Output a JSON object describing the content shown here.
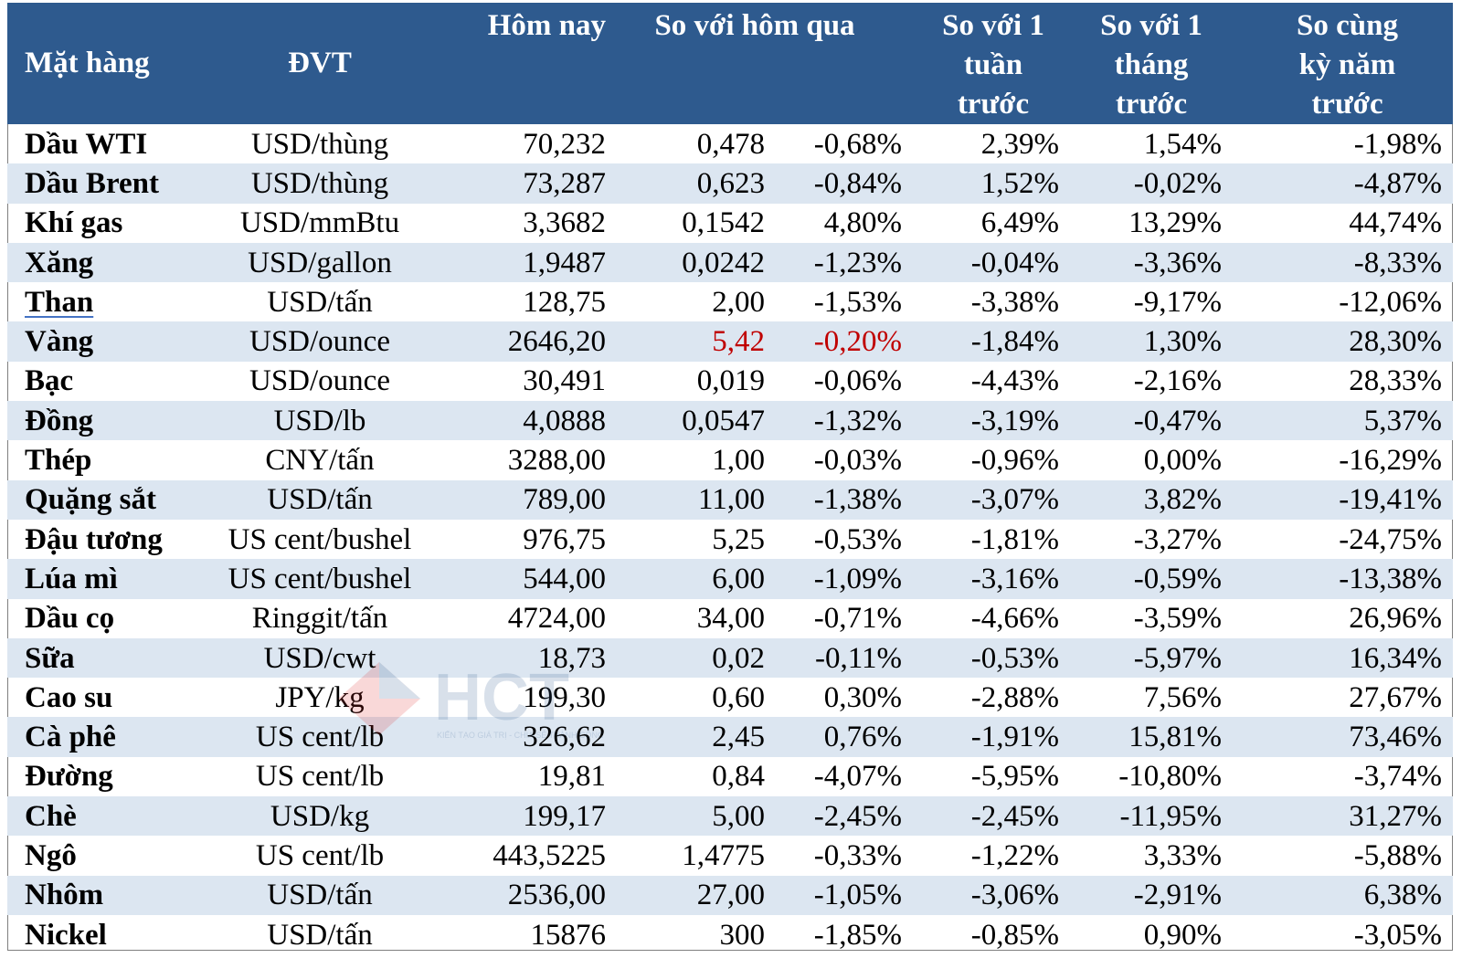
{
  "headers": {
    "item": "Mặt hàng",
    "unit": "ĐVT",
    "today": "Hôm nay",
    "vs_yesterday": "So với hôm qua",
    "vs_week": [
      "So với 1",
      "tuần",
      "trước"
    ],
    "vs_month": [
      "So với 1",
      "tháng",
      "trước"
    ],
    "vs_year": [
      "So cùng",
      "kỳ năm",
      "trước"
    ]
  },
  "rows": [
    {
      "name": "Dầu WTI",
      "unit": "USD/thùng",
      "today": "70,232",
      "chg": "0,478",
      "chg_pct": "-0,68%",
      "week": "2,39%",
      "month": "1,54%",
      "year": "-1,98%"
    },
    {
      "name": "Dầu Brent",
      "unit": "USD/thùng",
      "today": "73,287",
      "chg": "0,623",
      "chg_pct": "-0,84%",
      "week": "1,52%",
      "month": "-0,02%",
      "year": "-4,87%"
    },
    {
      "name": "Khí gas",
      "unit": "USD/mmBtu",
      "today": "3,3682",
      "chg": "0,1542",
      "chg_pct": "4,80%",
      "week": "6,49%",
      "month": "13,29%",
      "year": "44,74%"
    },
    {
      "name": "Xăng",
      "unit": "USD/gallon",
      "today": "1,9487",
      "chg": "0,0242",
      "chg_pct": "-1,23%",
      "week": "-0,04%",
      "month": "-3,36%",
      "year": "-8,33%"
    },
    {
      "name": "Than",
      "unit": "USD/tấn",
      "today": "128,75",
      "chg": "2,00",
      "chg_pct": "-1,53%",
      "week": "-3,38%",
      "month": "-9,17%",
      "year": "-12,06%"
    },
    {
      "name": "Vàng",
      "unit": "USD/ounce",
      "today": "2646,20",
      "chg": "5,42",
      "chg_pct": "-0,20%",
      "week": "-1,84%",
      "month": "1,30%",
      "year": "28,30%"
    },
    {
      "name": "Bạc",
      "unit": "USD/ounce",
      "today": "30,491",
      "chg": "0,019",
      "chg_pct": "-0,06%",
      "week": "-4,43%",
      "month": "-2,16%",
      "year": "28,33%"
    },
    {
      "name": "Đồng",
      "unit": "USD/lb",
      "today": "4,0888",
      "chg": "0,0547",
      "chg_pct": "-1,32%",
      "week": "-3,19%",
      "month": "-0,47%",
      "year": "5,37%"
    },
    {
      "name": "Thép",
      "unit": "CNY/tấn",
      "today": "3288,00",
      "chg": "1,00",
      "chg_pct": "-0,03%",
      "week": "-0,96%",
      "month": "0,00%",
      "year": "-16,29%"
    },
    {
      "name": "Quặng sắt",
      "unit": "USD/tấn",
      "today": "789,00",
      "chg": "11,00",
      "chg_pct": "-1,38%",
      "week": "-3,07%",
      "month": "3,82%",
      "year": "-19,41%"
    },
    {
      "name": "Đậu tương",
      "unit": "US cent/bushel",
      "today": "976,75",
      "chg": "5,25",
      "chg_pct": "-0,53%",
      "week": "-1,81%",
      "month": "-3,27%",
      "year": "-24,75%"
    },
    {
      "name": "Lúa mì",
      "unit": "US cent/bushel",
      "today": "544,00",
      "chg": "6,00",
      "chg_pct": "-1,09%",
      "week": "-3,16%",
      "month": "-0,59%",
      "year": "-13,38%"
    },
    {
      "name": "Dầu cọ",
      "unit": "Ringgit/tấn",
      "today": "4724,00",
      "chg": "34,00",
      "chg_pct": "-0,71%",
      "week": "-4,66%",
      "month": "-3,59%",
      "year": "26,96%"
    },
    {
      "name": "Sữa",
      "unit": "USD/cwt",
      "today": "18,73",
      "chg": "0,02",
      "chg_pct": "-0,11%",
      "week": "-0,53%",
      "month": "-5,97%",
      "year": "16,34%"
    },
    {
      "name": "Cao su",
      "unit": "JPY/kg",
      "today": "199,30",
      "chg": "0,60",
      "chg_pct": "0,30%",
      "week": "-2,88%",
      "month": "7,56%",
      "year": "27,67%"
    },
    {
      "name": "Cà phê",
      "unit": "US cent/lb",
      "today": "326,62",
      "chg": "2,45",
      "chg_pct": "0,76%",
      "week": "-1,91%",
      "month": "15,81%",
      "year": "73,46%"
    },
    {
      "name": "Đường",
      "unit": "US cent/lb",
      "today": "19,81",
      "chg": "0,84",
      "chg_pct": "-4,07%",
      "week": "-5,95%",
      "month": "-10,80%",
      "year": "-3,74%"
    },
    {
      "name": "Chè",
      "unit": "USD/kg",
      "today": "199,17",
      "chg": "5,00",
      "chg_pct": "-2,45%",
      "week": "-2,45%",
      "month": "-11,95%",
      "year": "31,27%"
    },
    {
      "name": "Ngô",
      "unit": "US cent/lb",
      "today": "443,5225",
      "chg": "1,4775",
      "chg_pct": "-0,33%",
      "week": "-1,22%",
      "month": "3,33%",
      "year": "-5,88%"
    },
    {
      "name": "Nhôm",
      "unit": "USD/tấn",
      "today": "2536,00",
      "chg": "27,00",
      "chg_pct": "-1,05%",
      "week": "-3,06%",
      "month": "-2,91%",
      "year": "6,38%"
    },
    {
      "name": "Nickel",
      "unit": "USD/tấn",
      "today": "15876",
      "chg": "300",
      "chg_pct": "-1,85%",
      "week": "-0,85%",
      "month": "0,90%",
      "year": "-3,05%"
    }
  ],
  "highlight_row_index": 5,
  "underlined_row_index": 4,
  "watermark": {
    "logo": "HCT",
    "tagline": "KIẾN TẠO GIÁ TRỊ - CHIA SẺ THÀNH CÔNG"
  },
  "colors": {
    "header_bg": "#2e5a8e",
    "stripe": "#dce6f1",
    "negative_red": "#c00000"
  }
}
